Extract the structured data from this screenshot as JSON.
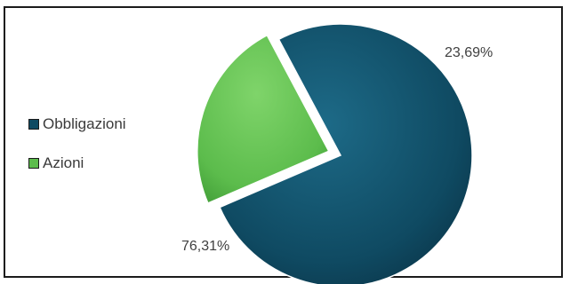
{
  "chart_data": {
    "type": "pie",
    "categories": [
      "Obbligazioni",
      "Azioni"
    ],
    "values": [
      76.31,
      23.69
    ],
    "labels": [
      "76,31%",
      "23,69%"
    ],
    "colors": [
      "#0f4a62",
      "#5cbc4c"
    ],
    "explode_slice": "Azioni",
    "legend": {
      "position": "left",
      "entries": [
        "Obbligazioni",
        "Azioni"
      ]
    }
  }
}
